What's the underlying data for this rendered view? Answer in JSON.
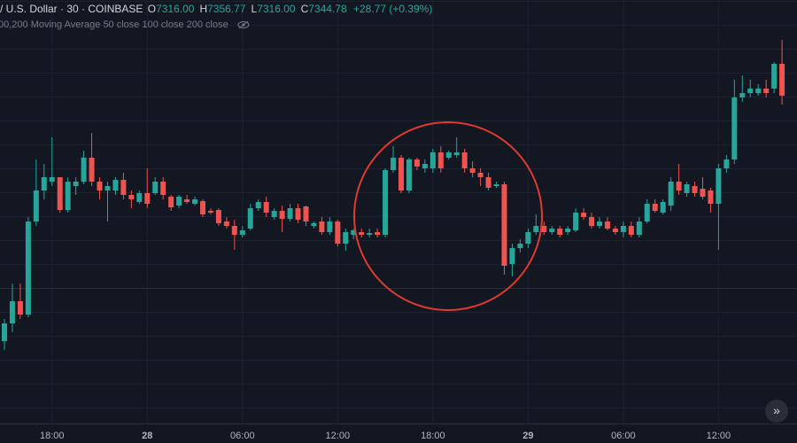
{
  "header": {
    "symbol": "/ U.S. Dollar · 30 · COINBASE",
    "ohlc": [
      {
        "label": "O",
        "value": "7316.00"
      },
      {
        "label": "H",
        "value": "7356.77"
      },
      {
        "label": "L",
        "value": "7316.00"
      },
      {
        "label": "C",
        "value": "7344.78"
      }
    ],
    "change": "+28.77 (+0.39%)",
    "indicator": "00,200 Moving Average 50 close 100 close 200 close"
  },
  "chart_data": {
    "type": "candlestick",
    "up_color": "#26a69a",
    "down_color": "#ef5350",
    "grid": true,
    "ylim": [
      7020,
      7500
    ],
    "categories": [
      null,
      null,
      null,
      null,
      null,
      null,
      "18:00",
      null,
      null,
      null,
      null,
      null,
      null,
      null,
      null,
      null,
      null,
      null,
      "28",
      null,
      null,
      null,
      null,
      null,
      null,
      null,
      null,
      null,
      null,
      null,
      "06:00",
      null,
      null,
      null,
      null,
      null,
      null,
      null,
      null,
      null,
      null,
      null,
      "12:00",
      null,
      null,
      null,
      null,
      null,
      null,
      null,
      null,
      null,
      null,
      null,
      "18:00",
      null,
      null,
      null,
      null,
      null,
      null,
      null,
      null,
      null,
      null,
      null,
      "29",
      null,
      null,
      null,
      null,
      null,
      null,
      null,
      null,
      null,
      null,
      null,
      "06:00",
      null,
      null,
      null,
      null,
      null,
      null,
      null,
      null,
      null,
      null,
      null,
      "12:00",
      null,
      null,
      null,
      null,
      null,
      null,
      null,
      null
    ],
    "open": [
      7115,
      7135,
      7160,
      7145,
      7250,
      7285,
      7295,
      7300,
      7263,
      7290,
      7295,
      7322,
      7295,
      7285,
      7285,
      7297,
      7280,
      7272,
      7282,
      7282,
      7295,
      7278,
      7268,
      7275,
      7270,
      7273,
      7262,
      7263,
      7250,
      7245,
      7235,
      7242,
      7265,
      7272,
      7255,
      7262,
      7253,
      7265,
      7267,
      7245,
      7250,
      7238,
      7250,
      7225,
      7235,
      7238,
      7235,
      7238,
      7235,
      7308,
      7322,
      7285,
      7320,
      7310,
      7310,
      7328,
      7322,
      7325,
      7328,
      7310,
      7305,
      7300,
      7290,
      7292,
      7202,
      7220,
      7225,
      7238,
      7245,
      7238,
      7242,
      7238,
      7240,
      7260,
      7255,
      7245,
      7250,
      7242,
      7238,
      7245,
      7235,
      7250,
      7270,
      7260,
      7268,
      7295,
      7282,
      7290,
      7287,
      7285,
      7270,
      7310,
      7320,
      7390,
      7395,
      7395,
      7400,
      7400,
      7428
    ],
    "high": [
      7140,
      7180,
      7180,
      7255,
      7320,
      7315,
      7345,
      7300,
      7300,
      7300,
      7330,
      7350,
      7300,
      7295,
      7300,
      7305,
      7285,
      7285,
      7310,
      7300,
      7300,
      7280,
      7280,
      7280,
      7278,
      7275,
      7265,
      7265,
      7255,
      7252,
      7245,
      7270,
      7275,
      7278,
      7265,
      7268,
      7270,
      7270,
      7268,
      7250,
      7255,
      7255,
      7252,
      7242,
      7242,
      7242,
      7242,
      7242,
      7310,
      7335,
      7325,
      7322,
      7322,
      7320,
      7332,
      7335,
      7330,
      7345,
      7332,
      7318,
      7310,
      7305,
      7295,
      7295,
      7225,
      7230,
      7242,
      7258,
      7250,
      7245,
      7245,
      7245,
      7265,
      7265,
      7260,
      7255,
      7255,
      7245,
      7250,
      7250,
      7255,
      7275,
      7275,
      7275,
      7300,
      7315,
      7295,
      7295,
      7300,
      7288,
      7315,
      7325,
      7410,
      7415,
      7410,
      7405,
      7410,
      7430,
      7455
    ],
    "low": [
      7105,
      7125,
      7140,
      7142,
      7245,
      7275,
      7290,
      7260,
      7260,
      7280,
      7292,
      7290,
      7275,
      7250,
      7280,
      7275,
      7265,
      7270,
      7265,
      7280,
      7275,
      7262,
      7265,
      7270,
      7268,
      7255,
      7258,
      7245,
      7242,
      7218,
      7232,
      7240,
      7262,
      7255,
      7252,
      7238,
      7250,
      7248,
      7245,
      7242,
      7235,
      7235,
      7222,
      7217,
      7230,
      7232,
      7232,
      7232,
      7232,
      7305,
      7282,
      7282,
      7308,
      7305,
      7305,
      7305,
      7320,
      7322,
      7305,
      7300,
      7290,
      7285,
      7288,
      7190,
      7188,
      7215,
      7220,
      7235,
      7235,
      7235,
      7232,
      7235,
      7238,
      7252,
      7242,
      7242,
      7240,
      7235,
      7232,
      7232,
      7232,
      7248,
      7260,
      7258,
      7262,
      7280,
      7278,
      7278,
      7275,
      7260,
      7218,
      7305,
      7315,
      7385,
      7390,
      7392,
      7390,
      7395,
      7382
    ],
    "close": [
      7135,
      7160,
      7145,
      7250,
      7285,
      7300,
      7300,
      7263,
      7295,
      7295,
      7322,
      7295,
      7285,
      7290,
      7297,
      7280,
      7275,
      7282,
      7270,
      7295,
      7280,
      7266,
      7278,
      7272,
      7275,
      7258,
      7260,
      7248,
      7245,
      7235,
      7240,
      7265,
      7272,
      7260,
      7262,
      7253,
      7265,
      7252,
      7250,
      7248,
      7238,
      7250,
      7225,
      7238,
      7240,
      7235,
      7237,
      7235,
      7308,
      7322,
      7285,
      7320,
      7312,
      7315,
      7328,
      7310,
      7328,
      7328,
      7310,
      7305,
      7300,
      7288,
      7292,
      7200,
      7220,
      7225,
      7238,
      7245,
      7238,
      7242,
      7235,
      7242,
      7260,
      7255,
      7245,
      7250,
      7242,
      7238,
      7245,
      7235,
      7250,
      7270,
      7262,
      7272,
      7295,
      7285,
      7292,
      7282,
      7278,
      7270,
      7310,
      7320,
      7390,
      7395,
      7400,
      7400,
      7395,
      7428,
      7392
    ]
  }
}
